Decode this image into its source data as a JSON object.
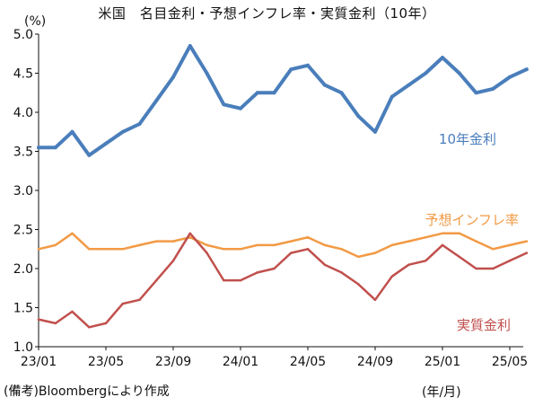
{
  "title": "米国　名目金利・予想インフレ率・実質金利（10年）",
  "unit_label": "(%)",
  "source": "(備考)Bloombergにより作成",
  "x_unit_label": "(年/月)",
  "colors": {
    "nominal": "#4a7ebb",
    "inflation": "#f29a45",
    "real": "#c0504d",
    "axis": "#111111"
  },
  "chart_data": {
    "type": "line",
    "title": "米国　名目金利・予想インフレ率・実質金利（10年）",
    "xlabel": "(年/月)",
    "ylabel": "(%)",
    "ylim": [
      1.0,
      5.0
    ],
    "yticks": [
      "1.0",
      "1.5",
      "2.0",
      "2.5",
      "3.0",
      "3.5",
      "4.0",
      "4.5",
      "5.0"
    ],
    "xticks": [
      "23/01",
      "23/05",
      "23/09",
      "24/01",
      "24/05",
      "24/09",
      "25/01",
      "25/05"
    ],
    "xticks_dates": [
      "2023-01",
      "2023-05",
      "2023-09",
      "2024-01",
      "2024-05",
      "2024-09",
      "2025-01",
      "2025-05"
    ],
    "grid": false,
    "legend": "inline labels",
    "x": [
      "2023-01",
      "2023-02",
      "2023-03",
      "2023-04",
      "2023-05",
      "2023-06",
      "2023-07",
      "2023-08",
      "2023-09",
      "2023-10",
      "2023-11",
      "2023-12",
      "2024-01",
      "2024-02",
      "2024-03",
      "2024-04",
      "2024-05",
      "2024-06",
      "2024-07",
      "2024-08",
      "2024-09",
      "2024-10",
      "2024-11",
      "2024-12",
      "2025-01",
      "2025-02",
      "2025-03",
      "2025-04",
      "2025-05",
      "2025-06"
    ],
    "series": [
      {
        "name": "10年金利",
        "values": [
          3.55,
          3.55,
          3.75,
          3.45,
          3.6,
          3.75,
          3.85,
          4.15,
          4.45,
          4.85,
          4.5,
          4.1,
          4.05,
          4.25,
          4.25,
          4.55,
          4.6,
          4.35,
          4.25,
          3.95,
          3.75,
          4.2,
          4.35,
          4.5,
          4.7,
          4.5,
          4.25,
          4.3,
          4.45,
          4.55
        ]
      },
      {
        "name": "予想インフレ率",
        "values": [
          2.25,
          2.3,
          2.45,
          2.25,
          2.25,
          2.25,
          2.3,
          2.35,
          2.35,
          2.4,
          2.3,
          2.25,
          2.25,
          2.3,
          2.3,
          2.35,
          2.4,
          2.3,
          2.25,
          2.15,
          2.2,
          2.3,
          2.35,
          2.4,
          2.45,
          2.45,
          2.35,
          2.25,
          2.3,
          2.35
        ]
      },
      {
        "name": "実質金利",
        "values": [
          1.35,
          1.3,
          1.45,
          1.25,
          1.3,
          1.55,
          1.6,
          1.85,
          2.1,
          2.45,
          2.2,
          1.85,
          1.85,
          1.95,
          2.0,
          2.2,
          2.25,
          2.05,
          1.95,
          1.8,
          1.6,
          1.9,
          2.05,
          2.1,
          2.3,
          2.15,
          2.0,
          2.0,
          2.1,
          2.2
        ]
      }
    ]
  }
}
